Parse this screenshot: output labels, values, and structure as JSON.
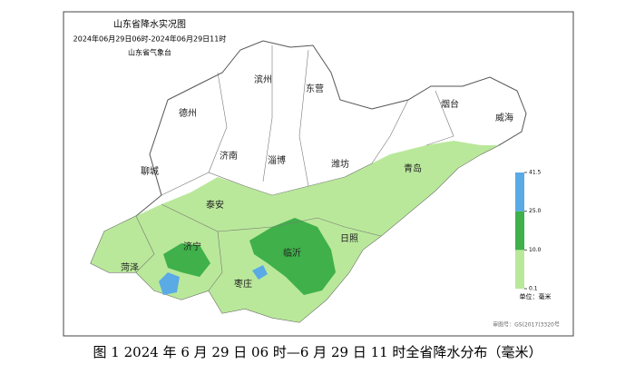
{
  "title": {
    "name": "山东省降水实况图",
    "period": "2024年06月29日06时-2024年06月29日11时",
    "issuer": "山东省气象台"
  },
  "cities": [
    "滨州",
    "东营",
    "德州",
    "烟台",
    "威海",
    "济南",
    "淄博",
    "潍坊",
    "青岛",
    "聊城",
    "泰安",
    "济宁",
    "临沂",
    "日照",
    "菏泽",
    "枣庄"
  ],
  "legend": {
    "ticks": [
      {
        "value": 0.1,
        "label": "0.1"
      },
      {
        "value": 10,
        "label": "10.0"
      },
      {
        "value": 25,
        "label": "25.0"
      },
      41.5
    ],
    "colors": [
      "#b9e89a",
      "#3fb04a",
      "#5aaae6"
    ],
    "unit": "单位：毫米"
  },
  "approval": "审图号：GS(2017)3320号",
  "caption": "图 1 2024 年 6 月 29 日 06 时—6 月 29 日 11 时全省降水分布（毫米）"
}
